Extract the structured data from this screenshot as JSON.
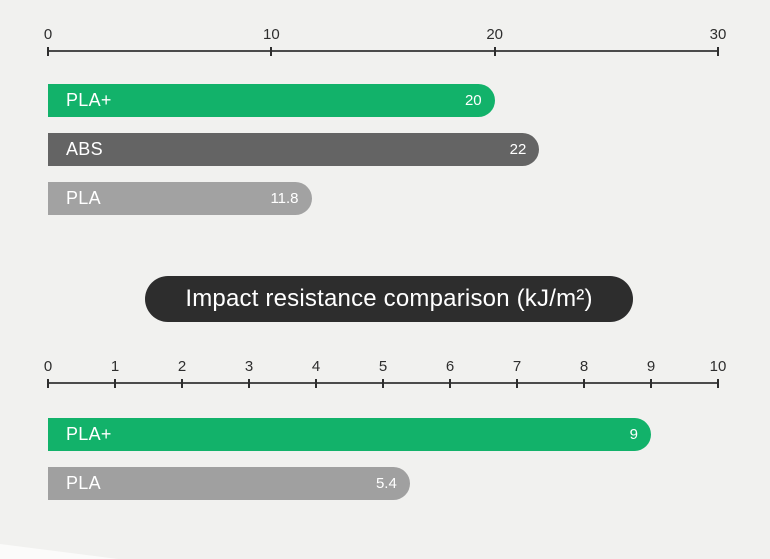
{
  "title": {
    "text": "Impact resistance comparison (kJ/m²)"
  },
  "colors": {
    "background": "#f1f1ef",
    "green": "#12b26a",
    "dark_gray": "#646464",
    "light_gray": "#a2a2a2",
    "title_pill_bg": "#2d2d2d",
    "title_text": "#ffffff",
    "axis_line": "#4b4b4b",
    "axis_text": "#2e2e2e",
    "bar_text": "#ffffff"
  },
  "chart_data": [
    {
      "type": "bar",
      "orientation": "horizontal",
      "title": "Impact resistance comparison (kJ/m²)",
      "axis": {
        "min": 0,
        "max": 30,
        "ticks": [
          0,
          10,
          20,
          30
        ],
        "position": "top",
        "grid": false
      },
      "legend": "none",
      "bars": [
        {
          "label": "PLA+",
          "value": 20,
          "display": "20",
          "color": "#12b26a"
        },
        {
          "label": "ABS",
          "value": 22,
          "display": "22",
          "color": "#646464"
        },
        {
          "label": "PLA",
          "value": 11.8,
          "display": "11.8",
          "color": "#a2a2a2"
        }
      ]
    },
    {
      "type": "bar",
      "orientation": "horizontal",
      "title": "Impact resistance comparison (kJ/m²)",
      "axis": {
        "min": 0,
        "max": 10,
        "ticks": [
          0,
          1,
          2,
          3,
          4,
          5,
          6,
          7,
          8,
          9,
          10
        ],
        "position": "top",
        "grid": false
      },
      "legend": "none",
      "bars": [
        {
          "label": "PLA+",
          "value": 9,
          "display": "9",
          "color": "#12b26a"
        },
        {
          "label": "PLA",
          "value": 5.4,
          "display": "5.4",
          "color": "#a0a0a0"
        }
      ]
    }
  ]
}
